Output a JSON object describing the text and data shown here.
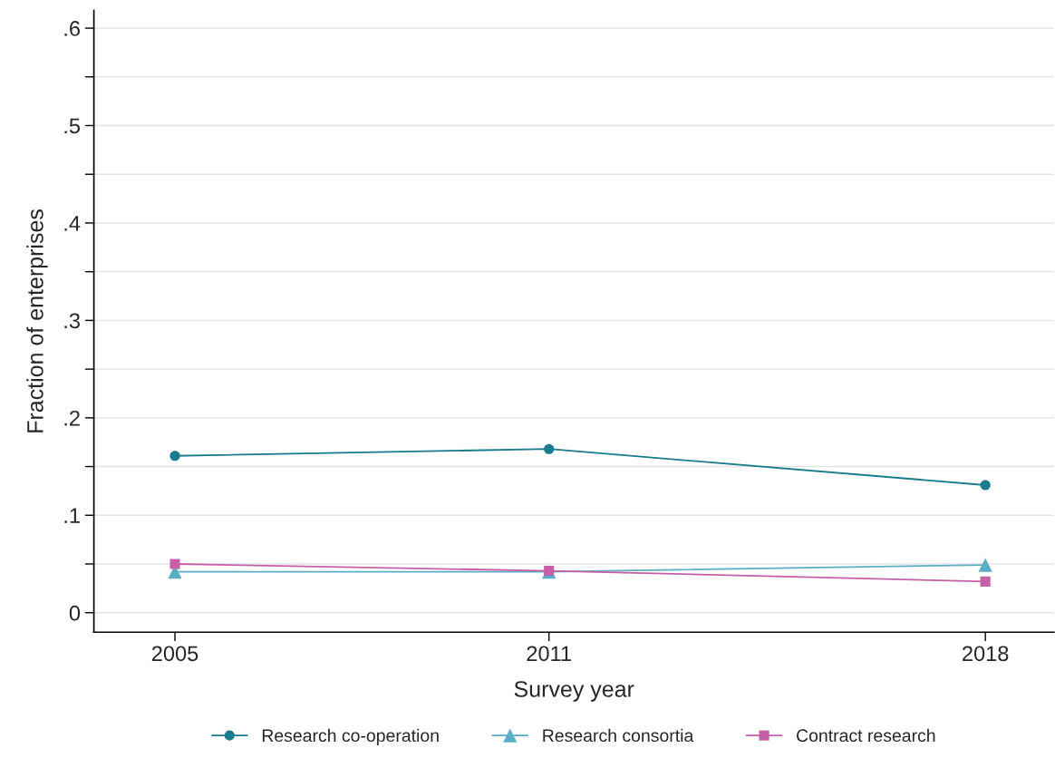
{
  "chart_data": {
    "type": "line",
    "xlabel": "Survey year",
    "ylabel": "Fraction of enterprises",
    "x": [
      2005,
      2011,
      2018
    ],
    "series": [
      {
        "name": "Research co-operation",
        "color": "#1a7a8e",
        "marker": "circle",
        "values": [
          0.161,
          0.168,
          0.131
        ]
      },
      {
        "name": "Research consortia",
        "color": "#5aaec4",
        "marker": "triangle",
        "values": [
          0.042,
          0.042,
          0.049
        ]
      },
      {
        "name": "Contract research",
        "color": "#c65fa8",
        "marker": "square",
        "values": [
          0.05,
          0.043,
          0.032
        ]
      }
    ],
    "xlim": [
      2003.7,
      2019.1
    ],
    "xticks": [
      2005,
      2011,
      2018
    ],
    "ylim": [
      -0.02,
      0.618
    ],
    "yticks": [
      0,
      {
        "value": 0.05,
        "label": null
      },
      {
        "value": 0.1,
        "label": ".1"
      },
      {
        "value": 0.15,
        "label": null
      },
      {
        "value": 0.2,
        "label": ".2"
      },
      {
        "value": 0.25,
        "label": null
      },
      {
        "value": 0.3,
        "label": ".3"
      },
      {
        "value": 0.35,
        "label": null
      },
      {
        "value": 0.4,
        "label": ".4"
      },
      {
        "value": 0.45,
        "label": null
      },
      {
        "value": 0.5,
        "label": ".5"
      },
      {
        "value": 0.55,
        "label": null
      },
      {
        "value": 0.6,
        "label": ".6"
      }
    ],
    "grid": "y",
    "legend": "bottom",
    "line_style": "solid"
  }
}
